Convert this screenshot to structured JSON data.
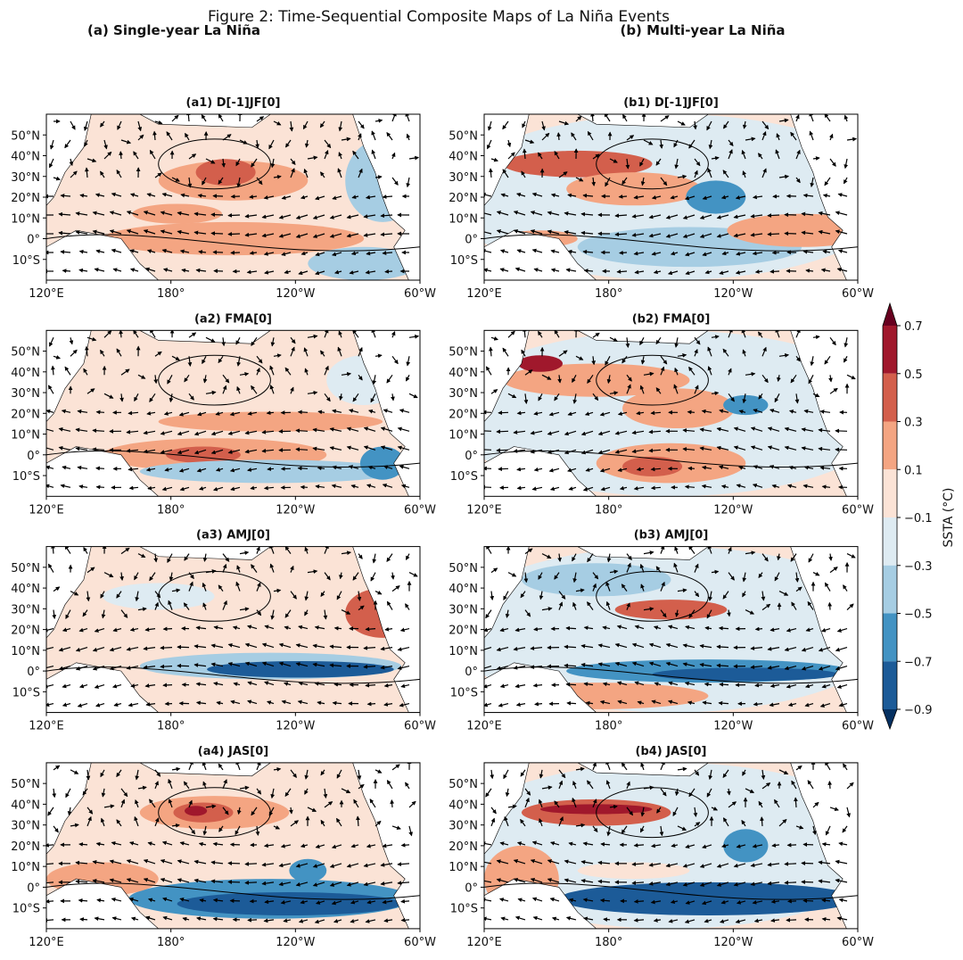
{
  "figure": {
    "title": "Figure 2: Time-Sequential Composite Maps of La Niña Events",
    "columns": [
      "(a) Single-year La Niña",
      "(b) Multi-year La Niña"
    ],
    "latlim": [
      -20,
      60
    ],
    "lonlim": [
      120,
      300
    ],
    "lat_ticks": [
      {
        "value": 50,
        "label": "50°N"
      },
      {
        "value": 40,
        "label": "40°N"
      },
      {
        "value": 30,
        "label": "30°N"
      },
      {
        "value": 20,
        "label": "20°N"
      },
      {
        "value": 10,
        "label": "10°N"
      },
      {
        "value": 0,
        "label": "0°"
      },
      {
        "value": -10,
        "label": "10°S"
      }
    ],
    "lon_ticks": [
      {
        "value": 120,
        "label": "120°E"
      },
      {
        "value": 180,
        "label": "180°"
      },
      {
        "value": 240,
        "label": "120°W"
      },
      {
        "value": 300,
        "label": "60°W"
      }
    ],
    "panels": [
      {
        "title": "(a1) D[-1]JF[0]"
      },
      {
        "title": "(b1) D[-1]JF[0]"
      },
      {
        "title": "(a2) FMA[0]"
      },
      {
        "title": "(b2) FMA[0]"
      },
      {
        "title": "(a3) AMJ[0]"
      },
      {
        "title": "(b3) AMJ[0]"
      },
      {
        "title": "(a4) JAS[0]"
      },
      {
        "title": "(b4) JAS[0]"
      }
    ],
    "colorbar": {
      "label": "SSTA (°C)",
      "ticks": [
        0.7,
        0.5,
        0.3,
        0.1,
        {
          "value": -0.1,
          "label": "−0.1"
        },
        {
          "value": -0.3,
          "label": "−0.3"
        },
        {
          "value": -0.5,
          "label": "−0.5"
        },
        {
          "value": -0.7,
          "label": "−0.7"
        },
        {
          "value": -0.9,
          "label": "−0.9"
        }
      ],
      "colors": [
        "#a0182c",
        "#d35f4c",
        "#f4a582",
        "#fbe3d6",
        "#deebf2",
        "#a6cde3",
        "#4393c3",
        "#1c5b98"
      ],
      "over_color": "#67001f",
      "under_color": "#053061"
    }
  }
}
